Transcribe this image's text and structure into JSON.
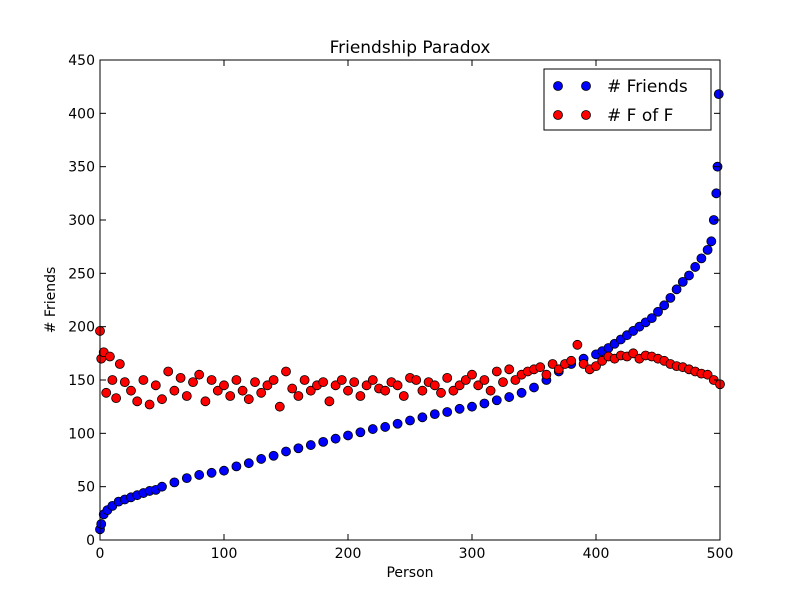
{
  "chart_data": {
    "type": "scatter",
    "title": "Friendship Paradox",
    "xlabel": "Person",
    "ylabel": "# Friends",
    "xlim": [
      0,
      500
    ],
    "ylim": [
      0,
      450
    ],
    "xticks": [
      0,
      100,
      200,
      300,
      400,
      500
    ],
    "yticks": [
      0,
      50,
      100,
      150,
      200,
      250,
      300,
      350,
      400,
      450
    ],
    "grid": false,
    "legend_position": "top-right",
    "series": [
      {
        "name": "# Friends",
        "color": "#0000ff",
        "x": [
          0,
          1,
          3,
          6,
          10,
          15,
          20,
          25,
          30,
          35,
          40,
          45,
          50,
          60,
          70,
          80,
          90,
          100,
          110,
          120,
          130,
          140,
          150,
          160,
          170,
          180,
          190,
          200,
          210,
          220,
          230,
          240,
          250,
          260,
          270,
          280,
          290,
          300,
          310,
          320,
          330,
          340,
          350,
          360,
          370,
          380,
          390,
          400,
          405,
          410,
          415,
          420,
          425,
          430,
          435,
          440,
          445,
          450,
          455,
          460,
          465,
          470,
          475,
          480,
          485,
          490,
          493,
          495,
          497,
          498,
          499
        ],
        "y": [
          10,
          15,
          24,
          28,
          32,
          36,
          38,
          40,
          42,
          44,
          46,
          47,
          50,
          54,
          58,
          61,
          63,
          65,
          69,
          72,
          76,
          79,
          83,
          86,
          89,
          92,
          95,
          98,
          101,
          104,
          106,
          109,
          112,
          115,
          118,
          120,
          123,
          125,
          128,
          131,
          134,
          138,
          143,
          150,
          158,
          165,
          170,
          174,
          177,
          180,
          184,
          188,
          192,
          196,
          200,
          204,
          208,
          214,
          220,
          227,
          235,
          242,
          248,
          256,
          264,
          272,
          280,
          300,
          325,
          350,
          418
        ]
      },
      {
        "name": "# F of F",
        "color": "#ff0000",
        "x": [
          0,
          1,
          3,
          5,
          8,
          10,
          13,
          16,
          20,
          25,
          30,
          35,
          40,
          45,
          50,
          55,
          60,
          65,
          70,
          75,
          80,
          85,
          90,
          95,
          100,
          105,
          110,
          115,
          120,
          125,
          130,
          135,
          140,
          145,
          150,
          155,
          160,
          165,
          170,
          175,
          180,
          185,
          190,
          195,
          200,
          205,
          210,
          215,
          220,
          225,
          230,
          235,
          240,
          245,
          250,
          255,
          260,
          265,
          270,
          275,
          280,
          285,
          290,
          295,
          300,
          305,
          310,
          315,
          320,
          325,
          330,
          335,
          340,
          345,
          350,
          355,
          360,
          365,
          370,
          375,
          380,
          385,
          390,
          395,
          400,
          405,
          410,
          415,
          420,
          425,
          430,
          435,
          440,
          445,
          450,
          455,
          460,
          465,
          470,
          475,
          480,
          485,
          490,
          495,
          500
        ],
        "y": [
          196,
          170,
          176,
          138,
          172,
          150,
          133,
          165,
          148,
          140,
          130,
          150,
          127,
          145,
          132,
          158,
          140,
          152,
          135,
          148,
          155,
          130,
          150,
          140,
          145,
          135,
          150,
          140,
          132,
          148,
          138,
          145,
          150,
          125,
          158,
          142,
          135,
          150,
          140,
          145,
          148,
          130,
          145,
          150,
          140,
          148,
          135,
          145,
          150,
          142,
          140,
          148,
          145,
          135,
          152,
          150,
          140,
          148,
          145,
          138,
          152,
          140,
          145,
          150,
          155,
          145,
          150,
          140,
          158,
          148,
          160,
          150,
          155,
          158,
          160,
          162,
          155,
          165,
          160,
          165,
          168,
          183,
          165,
          160,
          163,
          168,
          172,
          170,
          173,
          172,
          175,
          170,
          173,
          172,
          170,
          168,
          165,
          163,
          162,
          160,
          158,
          156,
          155,
          150,
          146
        ]
      }
    ]
  }
}
